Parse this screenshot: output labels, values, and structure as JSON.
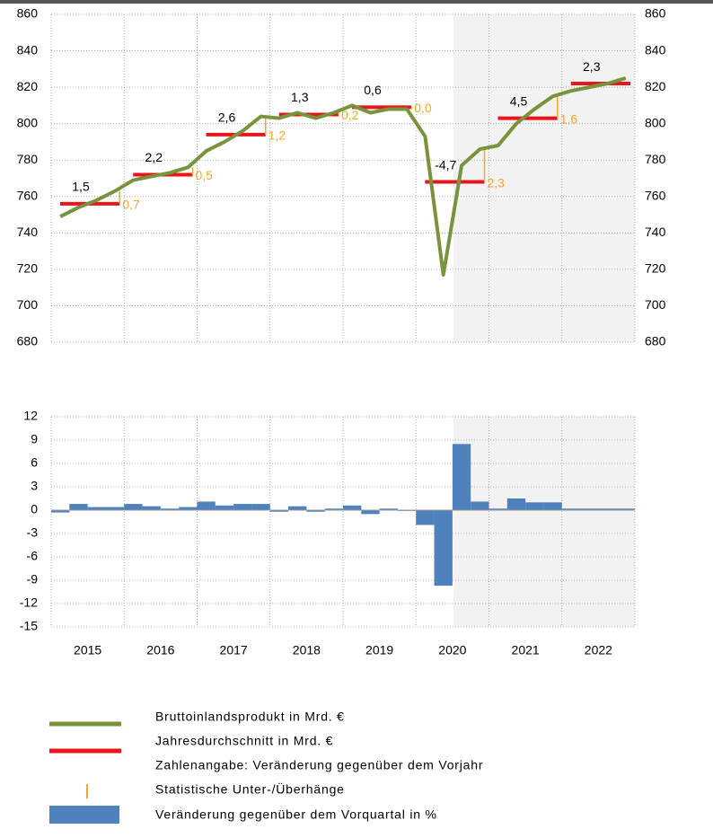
{
  "chart_data": [
    {
      "type": "line",
      "ylim": [
        680,
        860
      ],
      "yticks": [
        680,
        700,
        720,
        740,
        760,
        780,
        800,
        820,
        840,
        860
      ],
      "y2lim": [
        680,
        860
      ],
      "y2ticks": [
        680,
        700,
        720,
        740,
        760,
        780,
        800,
        820,
        840,
        860
      ],
      "grid": true,
      "series": [
        {
          "name": "Bruttoinlandsprodukt in Mrd. €",
          "color": "#77933c",
          "values": [
            749,
            754,
            758,
            763,
            769,
            771,
            773,
            776,
            785,
            790,
            796,
            804,
            803,
            806,
            803,
            806,
            810,
            806,
            808,
            808,
            793,
            717,
            777,
            786,
            788,
            800,
            808,
            815,
            818,
            820,
            822,
            825
          ]
        },
        {
          "name": "Jahresdurchschnitt in Mrd. €",
          "color": "#e8151b",
          "values": [
            756,
            772,
            794,
            805,
            809,
            768,
            803,
            822
          ]
        },
        {
          "name": "Zahlenangabe: Veränderung gegenüber dem Vorjahr",
          "values": [
            1.5,
            2.2,
            2.6,
            1.3,
            0.6,
            -4.7,
            4.5,
            2.3
          ],
          "value_labels": [
            "1,5",
            "2,2",
            "2,6",
            "1,3",
            "0,6",
            "-4,7",
            "4,5",
            "2,3"
          ]
        },
        {
          "name": "Statistische Unter-/Überhänge",
          "color": "#f7a823",
          "values": [
            0.7,
            0.5,
            1.2,
            0.2,
            0.0,
            2.3,
            1.6
          ],
          "value_labels": [
            "0,7",
            "0,5",
            "1,2",
            "0,2",
            "0,0",
            "2,3",
            "1,6"
          ]
        }
      ]
    },
    {
      "type": "bar",
      "ylim": [
        -15,
        12
      ],
      "yticks": [
        -15,
        -12,
        -9,
        -6,
        -3,
        0,
        3,
        6,
        9,
        12
      ],
      "grid": true,
      "year_labels": [
        "2015",
        "2016",
        "2017",
        "2018",
        "2019",
        "2020",
        "2021",
        "2022"
      ],
      "series": [
        {
          "name": "Veränderung gegenüber dem Vorquartal in %",
          "color": "#4f81bd",
          "values": [
            -0.3,
            0.8,
            0.4,
            0.4,
            0.8,
            0.5,
            0.2,
            0.4,
            1.1,
            0.6,
            0.8,
            0.8,
            -0.2,
            0.5,
            -0.2,
            0.2,
            0.6,
            -0.5,
            0.2,
            -0.1,
            -1.9,
            -9.7,
            8.5,
            1.1,
            0.2,
            1.5,
            1.0,
            1.0,
            0.2,
            0.2,
            0.2,
            0.2
          ]
        }
      ]
    }
  ]
}
